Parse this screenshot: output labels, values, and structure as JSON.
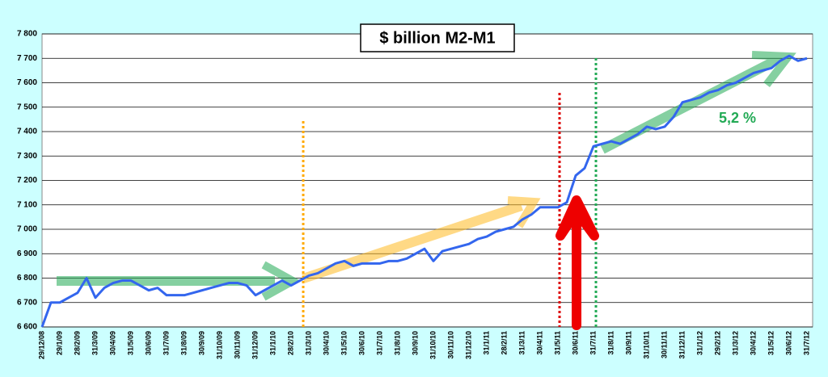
{
  "chart_data": {
    "type": "line",
    "title": "$ billion M2-M1",
    "annotation": "5,2 %",
    "categories": [
      "29/12/08",
      null,
      "29/1/09",
      null,
      "28/2/09",
      null,
      "31/3/09",
      null,
      "30/4/09",
      null,
      "31/5/09",
      null,
      "30/6/09",
      null,
      "31/7/09",
      null,
      "31/8/09",
      null,
      "30/9/09",
      null,
      "31/10/09",
      null,
      "30/11/09",
      null,
      "31/12/09",
      null,
      "31/1/10",
      null,
      "28/2/10",
      null,
      "31/3/10",
      null,
      "30/4/10",
      null,
      "31/5/10",
      null,
      "30/6/10",
      null,
      "31/7/10",
      null,
      "31/8/10",
      null,
      "30/9/10",
      null,
      "31/10/10",
      null,
      "30/11/10",
      null,
      "31/12/10",
      null,
      "31/1/11",
      null,
      "28/2/11",
      null,
      "31/3/11",
      null,
      "30/4/11",
      null,
      "31/5/11",
      null,
      "30/6/11",
      null,
      "31/7/11",
      null,
      "31/8/11",
      null,
      "30/9/11",
      null,
      "31/10/11",
      null,
      "30/11/11",
      null,
      "31/12/11",
      null,
      "31/1/12",
      null,
      "29/2/12",
      null,
      "31/3/12",
      null,
      "30/4/12",
      null,
      "31/5/12",
      null,
      "30/6/12",
      null,
      "31/7/12"
    ],
    "values": [
      6600,
      6700,
      6700,
      6720,
      6740,
      6800,
      6720,
      6760,
      6780,
      6790,
      6790,
      6770,
      6750,
      6760,
      6730,
      6730,
      6730,
      6740,
      6750,
      6760,
      6770,
      6780,
      6780,
      6770,
      6730,
      6750,
      6770,
      6790,
      6770,
      6790,
      6810,
      6820,
      6840,
      6860,
      6870,
      6850,
      6860,
      6860,
      6860,
      6870,
      6870,
      6880,
      6900,
      6920,
      6870,
      6910,
      6920,
      6930,
      6940,
      6960,
      6970,
      6990,
      7000,
      7010,
      7040,
      7060,
      7090,
      7090,
      7090,
      7110,
      7220,
      7250,
      7340,
      7350,
      7360,
      7350,
      7370,
      7390,
      7420,
      7410,
      7420,
      7460,
      7520,
      7530,
      7540,
      7560,
      7570,
      7590,
      7600,
      7620,
      7640,
      7650,
      7660,
      7690,
      7710,
      7690,
      7700
    ],
    "color": "#3366ee",
    "ylim": [
      6600,
      7800
    ],
    "yticks": [
      {
        "value": 6600,
        "label": "6 600"
      },
      {
        "value": 6700,
        "label": "6 700"
      },
      {
        "value": 6800,
        "label": "6 800"
      },
      {
        "value": 6900,
        "label": "6 900"
      },
      {
        "value": 7000,
        "label": "7 000"
      },
      {
        "value": 7100,
        "label": "7 100"
      },
      {
        "value": 7200,
        "label": "7 200"
      },
      {
        "value": 7300,
        "label": "7 300"
      },
      {
        "value": 7400,
        "label": "7 400"
      },
      {
        "value": 7500,
        "label": "7 500"
      },
      {
        "value": 7600,
        "label": "7 600"
      },
      {
        "value": 7700,
        "label": "7 700"
      },
      {
        "value": 7800,
        "label": "7 800"
      }
    ],
    "grid": true
  }
}
